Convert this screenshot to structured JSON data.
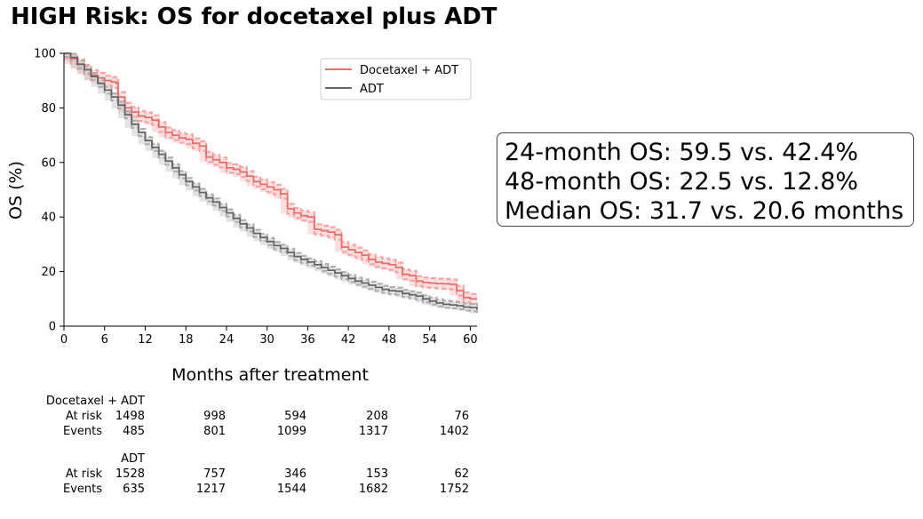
{
  "title": "HIGH Risk: OS for docetaxel plus ADT",
  "chart_data": {
    "type": "line",
    "subtype": "kaplan-meier",
    "title": "HIGH Risk: OS for docetaxel plus ADT",
    "xlabel": "Months after treatment",
    "ylabel": "OS (%)",
    "xlim": [
      0,
      61
    ],
    "ylim": [
      0,
      100
    ],
    "xticks": [
      0,
      6,
      12,
      18,
      24,
      30,
      36,
      42,
      48,
      54,
      60
    ],
    "yticks": [
      0,
      20,
      40,
      60,
      80,
      100
    ],
    "grid": false,
    "legend_position": "top-right",
    "series": [
      {
        "name": "Docetaxel + ADT",
        "color": "#f26b6b",
        "band_color": "#f7a7a7",
        "ci_offset": 1.8,
        "x": [
          0,
          1,
          2,
          3,
          4,
          5,
          6,
          7,
          7.7,
          8,
          9,
          10,
          11,
          12,
          13,
          14,
          15,
          16,
          17,
          18,
          19,
          20,
          21,
          22,
          23,
          24,
          25,
          26,
          27,
          28,
          29,
          30,
          31,
          32,
          33,
          34,
          35,
          36,
          37,
          38,
          39,
          40,
          41,
          42,
          43,
          44,
          45,
          46,
          47,
          48,
          49,
          50,
          51,
          52,
          53,
          54,
          55,
          56,
          57,
          58,
          59,
          60,
          61
        ],
        "y": [
          100,
          98,
          96,
          94,
          92,
          91,
          90,
          89.5,
          89,
          84,
          80,
          78.5,
          77,
          76.5,
          75.5,
          73,
          71,
          70,
          69,
          68.5,
          67,
          66,
          62,
          61,
          60,
          58,
          57.5,
          56.5,
          55,
          53,
          52,
          51,
          50,
          48.5,
          43,
          41.5,
          40.5,
          40,
          35.5,
          35,
          34.5,
          33.5,
          29,
          28,
          27,
          26,
          24.5,
          23.5,
          23,
          22.5,
          21.5,
          19,
          18.5,
          16.5,
          16,
          15.8,
          15.6,
          15.5,
          15.3,
          13,
          10.5,
          10,
          10
        ]
      },
      {
        "name": "ADT",
        "color": "#666666",
        "band_color": "#b0b0b0",
        "ci_offset": 1.3,
        "x": [
          0,
          1,
          2,
          3,
          4,
          5,
          6,
          7,
          8,
          9,
          10,
          11,
          12,
          13,
          14,
          15,
          16,
          17,
          18,
          19,
          20,
          21,
          22,
          23,
          24,
          25,
          26,
          27,
          28,
          29,
          30,
          31,
          32,
          33,
          34,
          35,
          36,
          37,
          38,
          39,
          40,
          41,
          42,
          43,
          44,
          45,
          46,
          47,
          48,
          49,
          50,
          51,
          52,
          53,
          54,
          55,
          56,
          57,
          58,
          59,
          60,
          61
        ],
        "y": [
          100,
          98.5,
          96,
          94,
          91.5,
          89,
          86.5,
          84,
          81,
          77.5,
          74,
          71,
          68,
          65.5,
          63,
          60.5,
          58,
          55.5,
          53,
          51,
          49,
          47,
          45.5,
          43.5,
          41.5,
          39.5,
          37.5,
          36,
          34,
          32.5,
          31,
          29.5,
          28.5,
          27,
          25.5,
          24.5,
          23.5,
          22.5,
          21.5,
          20.5,
          19.5,
          18.5,
          17.5,
          16.5,
          15.8,
          15,
          14.2,
          13.5,
          13,
          12.8,
          12,
          11.5,
          11,
          10,
          9.2,
          8.5,
          8,
          7.8,
          7.5,
          7,
          6.8,
          6
        ]
      }
    ]
  },
  "stats": [
    "24-month OS: 59.5 vs. 42.4%",
    "48-month OS: 22.5 vs. 12.8%",
    "Median OS: 31.7 vs. 20.6 months"
  ],
  "risk_table": {
    "groups": [
      {
        "name": "Docetaxel + ADT",
        "rows": [
          {
            "label": "At risk",
            "values": [
              "1498",
              "998",
              "594",
              "208",
              "76"
            ]
          },
          {
            "label": "Events",
            "values": [
              "485",
              "801",
              "1099",
              "1317",
              "1402"
            ]
          }
        ]
      },
      {
        "name": "ADT",
        "rows": [
          {
            "label": "At risk",
            "values": [
              "1528",
              "757",
              "346",
              "153",
              "62"
            ]
          },
          {
            "label": "Events",
            "values": [
              "635",
              "1217",
              "1544",
              "1682",
              "1752"
            ]
          }
        ]
      }
    ]
  }
}
